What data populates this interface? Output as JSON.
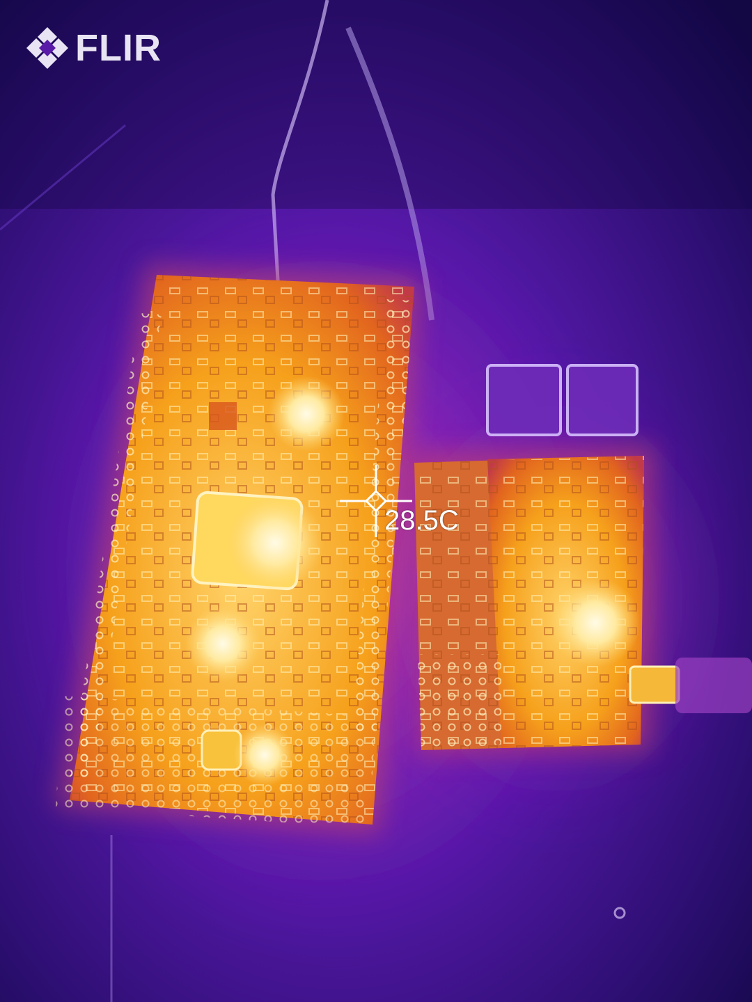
{
  "camera": {
    "brand": "FLIR",
    "logo_icon": "flir-diamond-icon"
  },
  "measurement": {
    "spot_temperature": "28.5C",
    "spot_icon": "crosshair-spot-icon"
  },
  "palette": {
    "name": "iron",
    "cold": "#1b0b5e",
    "cool": "#5a1ab0",
    "warm": "#e0508a",
    "hot": "#f7a21a",
    "hottest": "#fff6c8"
  }
}
